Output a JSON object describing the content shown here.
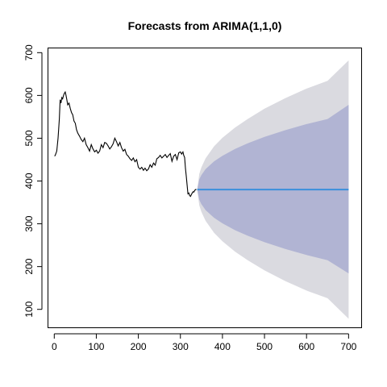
{
  "chart_data": {
    "type": "line",
    "title": "Forecasts from ARIMA(1,1,0)",
    "xlabel": "",
    "ylabel": "",
    "xlim": [
      -14,
      730
    ],
    "ylim": [
      58,
      710
    ],
    "x_ticks": [
      0,
      100,
      200,
      300,
      400,
      500,
      600,
      700
    ],
    "y_ticks": [
      100,
      200,
      300,
      400,
      500,
      600,
      700
    ],
    "grid": false,
    "colors": {
      "history": "#000000",
      "forecast": "#3b8fdc",
      "band80": "#b1b4d3",
      "band95": "#dadae0"
    },
    "history": {
      "x": [
        1,
        3,
        6,
        9,
        12,
        14,
        16,
        18,
        20,
        22,
        24,
        26,
        28,
        30,
        32,
        35,
        38,
        41,
        44,
        47,
        50,
        53,
        56,
        60,
        64,
        68,
        72,
        76,
        80,
        84,
        88,
        92,
        96,
        100,
        104,
        108,
        112,
        116,
        120,
        124,
        128,
        132,
        136,
        140,
        144,
        148,
        152,
        156,
        160,
        164,
        168,
        172,
        176,
        180,
        184,
        188,
        192,
        196,
        200,
        204,
        208,
        212,
        216,
        220,
        224,
        228,
        232,
        236,
        240,
        244,
        248,
        252,
        256,
        260,
        264,
        268,
        272,
        276,
        280,
        284,
        288,
        292,
        296,
        300,
        303,
        306,
        308,
        310,
        312,
        314,
        316,
        318,
        320,
        322,
        324,
        326,
        328,
        330,
        332,
        334,
        336,
        338
      ],
      "y": [
        458,
        462,
        470,
        500,
        545,
        590,
        582,
        595,
        592,
        600,
        605,
        608,
        600,
        590,
        578,
        582,
        570,
        560,
        555,
        540,
        535,
        520,
        512,
        505,
        497,
        492,
        500,
        485,
        478,
        470,
        485,
        475,
        468,
        472,
        465,
        470,
        485,
        478,
        490,
        488,
        482,
        475,
        480,
        487,
        500,
        492,
        482,
        490,
        478,
        470,
        474,
        462,
        458,
        452,
        448,
        454,
        445,
        450,
        432,
        428,
        432,
        425,
        430,
        424,
        428,
        438,
        432,
        442,
        437,
        452,
        455,
        460,
        454,
        458,
        462,
        455,
        460,
        464,
        446,
        458,
        462,
        450,
        466,
        468,
        463,
        468,
        460,
        455,
        430,
        410,
        390,
        370,
        372,
        366,
        364,
        368,
        372,
        375,
        374,
        378,
        380,
        380
      ]
    },
    "forecast": {
      "x": [
        340,
        700
      ],
      "mean": [
        380,
        380
      ]
    },
    "interval80": {
      "x": [
        340,
        345,
        350,
        360,
        380,
        400,
        430,
        460,
        500,
        550,
        600,
        650,
        700
      ],
      "lo": [
        380,
        356,
        346,
        332,
        314,
        301,
        285,
        272,
        257,
        241,
        227,
        215,
        184
      ],
      "hi": [
        380,
        404,
        414,
        428,
        446,
        459,
        475,
        488,
        503,
        519,
        533,
        545,
        578
      ]
    },
    "interval95": {
      "x": [
        340,
        345,
        350,
        360,
        380,
        400,
        430,
        460,
        500,
        550,
        600,
        650,
        700
      ],
      "lo": [
        380,
        343,
        328,
        307,
        279,
        259,
        235,
        215,
        191,
        166,
        144,
        126,
        78
      ],
      "hi": [
        380,
        417,
        432,
        453,
        481,
        501,
        525,
        545,
        569,
        594,
        616,
        634,
        682
      ]
    }
  }
}
